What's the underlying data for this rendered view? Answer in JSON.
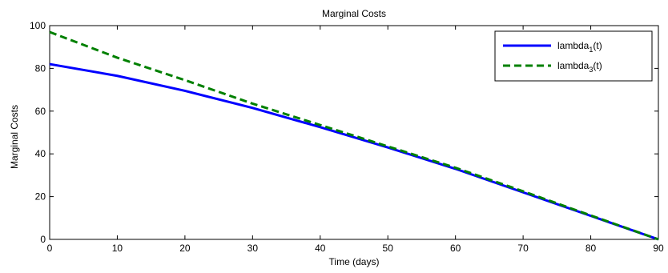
{
  "chart_data": {
    "type": "line",
    "title": "Marginal Costs",
    "xlabel": "Time (days)",
    "ylabel": "Marginal Costs",
    "xlim": [
      0,
      90
    ],
    "ylim": [
      0,
      100
    ],
    "xticks": [
      0,
      10,
      20,
      30,
      40,
      50,
      60,
      70,
      80,
      90
    ],
    "yticks": [
      0,
      20,
      40,
      60,
      80,
      100
    ],
    "grid": false,
    "legend_position": "top-right",
    "series": [
      {
        "name": "lambda",
        "subscript": "1",
        "suffix": "(t)",
        "color": "#0000ff",
        "dash": "solid",
        "x": [
          0,
          10,
          20,
          30,
          40,
          50,
          60,
          70,
          80,
          90
        ],
        "y": [
          82,
          76.5,
          69.5,
          61.5,
          52.5,
          43,
          33,
          22,
          11,
          0
        ]
      },
      {
        "name": "lambda",
        "subscript": "3",
        "suffix": "(t)",
        "color": "#008000",
        "dash": "dashed",
        "x": [
          0,
          10,
          20,
          30,
          40,
          50,
          60,
          70,
          80,
          90
        ],
        "y": [
          97,
          85,
          74.5,
          63.5,
          53.5,
          43.5,
          33.5,
          22.5,
          11.2,
          0
        ]
      }
    ]
  }
}
